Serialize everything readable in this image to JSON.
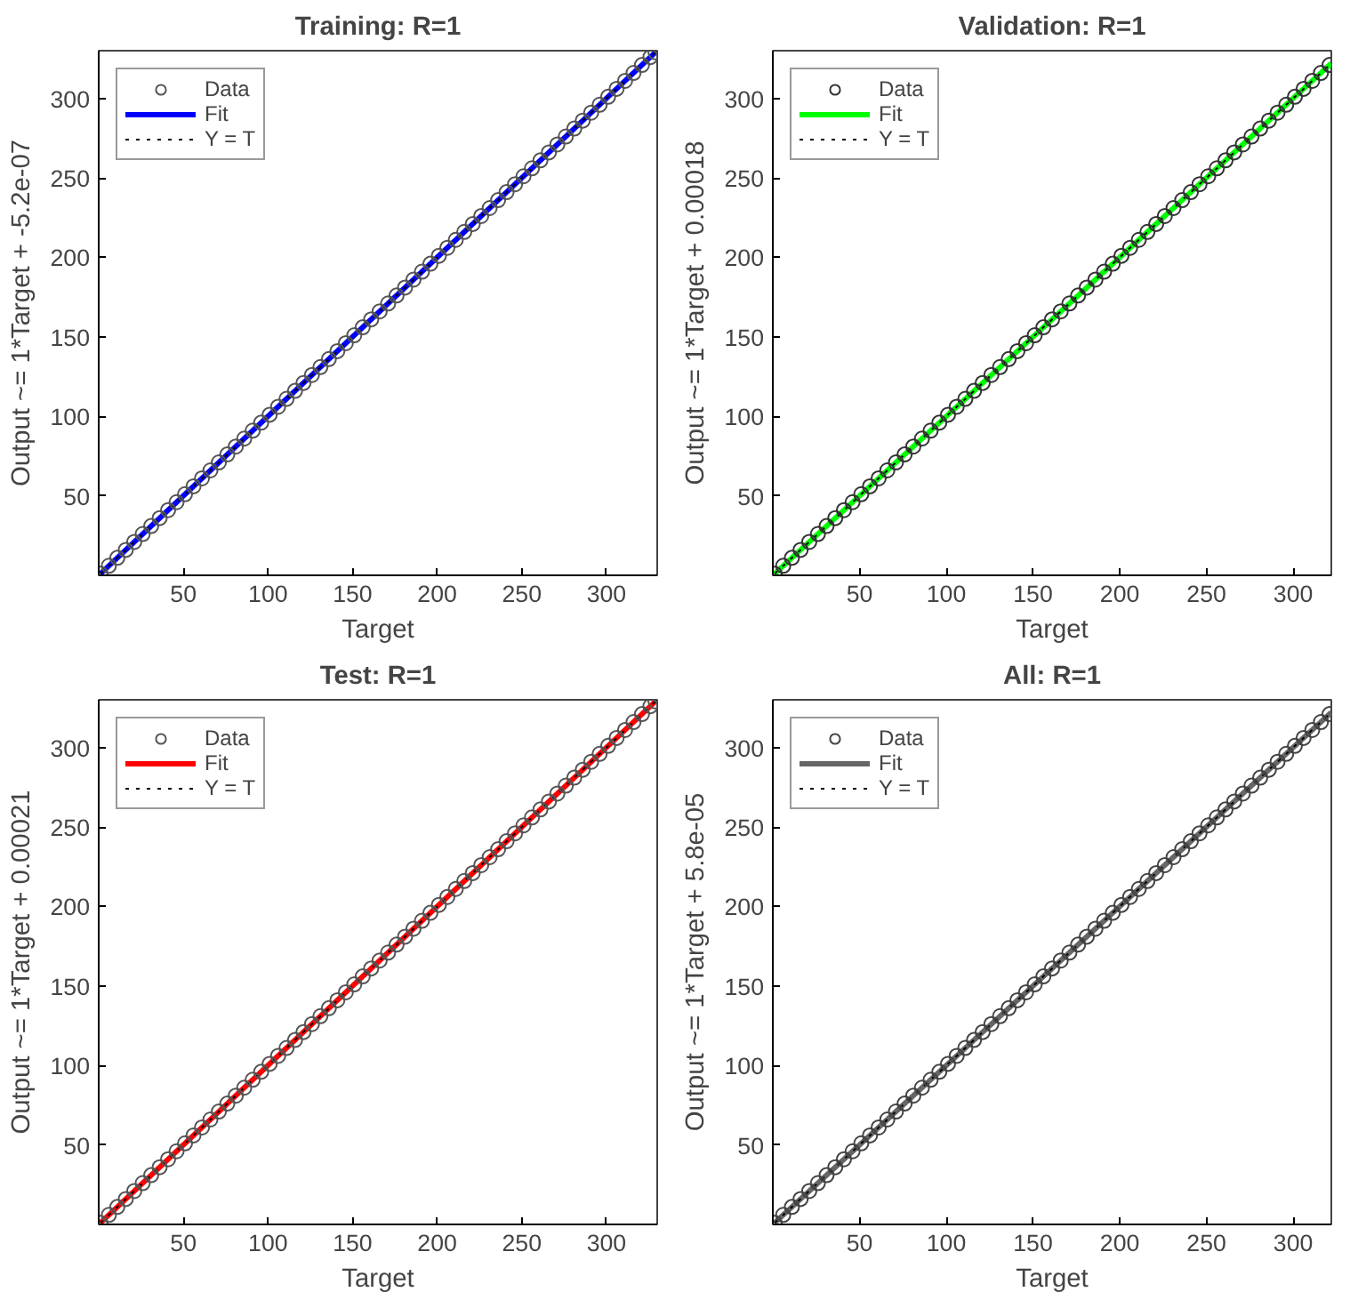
{
  "chart_data": [
    {
      "type": "scatter",
      "title": "Training: R=1",
      "xlabel": "Target",
      "ylabel": "Output ~= 1*Target + -5.2e-07",
      "xlim": [
        0,
        330
      ],
      "ylim": [
        0,
        330
      ],
      "xticks": [
        50,
        100,
        150,
        200,
        250,
        300
      ],
      "yticks": [
        50,
        100,
        150,
        200,
        250,
        300
      ],
      "grid": false,
      "legend": "top left",
      "series": [
        {
          "name": "Data",
          "marker": "circle",
          "color": "#555555",
          "x": [
            1,
            6,
            11,
            16,
            21,
            26,
            31,
            36,
            41,
            46,
            51,
            56,
            61,
            66,
            71,
            76,
            81,
            86,
            91,
            96,
            101,
            106,
            111,
            116,
            121,
            126,
            131,
            136,
            141,
            146,
            151,
            156,
            161,
            166,
            171,
            176,
            181,
            186,
            191,
            196,
            201,
            206,
            211,
            216,
            221,
            226,
            231,
            236,
            241,
            246,
            251,
            256,
            261,
            266,
            271,
            276,
            281,
            286,
            291,
            296,
            301,
            306,
            311,
            316,
            321,
            326,
            329
          ],
          "values": [
            1,
            6,
            11,
            16,
            21,
            26,
            31,
            36,
            41,
            46,
            51,
            56,
            61,
            66,
            71,
            76,
            81,
            86,
            91,
            96,
            101,
            106,
            111,
            116,
            121,
            126,
            131,
            136,
            141,
            146,
            151,
            156,
            161,
            166,
            171,
            176,
            181,
            186,
            191,
            196,
            201,
            206,
            211,
            216,
            221,
            226,
            231,
            236,
            241,
            246,
            251,
            256,
            261,
            266,
            271,
            276,
            281,
            286,
            291,
            296,
            301,
            306,
            311,
            316,
            321,
            326,
            329
          ]
        },
        {
          "name": "Fit",
          "type": "line",
          "line_style": "solid",
          "color": "#0000ff",
          "x": [
            1,
            329
          ],
          "values": [
            1,
            329
          ]
        },
        {
          "name": "Y = T",
          "type": "line",
          "line_style": "dotted",
          "color": "#000000",
          "x": [
            1,
            329
          ],
          "values": [
            1,
            329
          ]
        }
      ]
    },
    {
      "type": "scatter",
      "title": "Validation: R=1",
      "xlabel": "Target",
      "ylabel": "Output ~= 1*Target + 0.00018",
      "xlim": [
        0,
        322
      ],
      "ylim": [
        0,
        330
      ],
      "xticks": [
        50,
        100,
        150,
        200,
        250,
        300
      ],
      "yticks": [
        50,
        100,
        150,
        200,
        250,
        300
      ],
      "grid": false,
      "legend": "top left",
      "series": [
        {
          "name": "Data",
          "marker": "circle",
          "color": "#333333",
          "x": [
            1,
            6,
            11,
            16,
            21,
            26,
            31,
            36,
            41,
            46,
            51,
            56,
            61,
            66,
            71,
            76,
            81,
            86,
            91,
            96,
            101,
            106,
            111,
            116,
            121,
            126,
            131,
            136,
            141,
            146,
            151,
            156,
            161,
            166,
            171,
            176,
            181,
            186,
            191,
            196,
            201,
            206,
            211,
            216,
            221,
            226,
            231,
            236,
            241,
            246,
            251,
            256,
            261,
            266,
            271,
            276,
            281,
            286,
            291,
            296,
            301,
            306,
            311,
            316,
            321
          ],
          "values": [
            1,
            6,
            11,
            16,
            21,
            26,
            31,
            36,
            41,
            46,
            51,
            56,
            61,
            66,
            71,
            76,
            81,
            86,
            91,
            96,
            101,
            106,
            111,
            116,
            121,
            126,
            131,
            136,
            141,
            146,
            151,
            156,
            161,
            166,
            171,
            176,
            181,
            186,
            191,
            196,
            201,
            206,
            211,
            216,
            221,
            226,
            231,
            236,
            241,
            246,
            251,
            256,
            261,
            266,
            271,
            276,
            281,
            286,
            291,
            296,
            301,
            306,
            311,
            316,
            321
          ]
        },
        {
          "name": "Fit",
          "type": "line",
          "line_style": "solid",
          "color": "#00ff00",
          "x": [
            1,
            322
          ],
          "values": [
            1,
            322
          ]
        },
        {
          "name": "Y = T",
          "type": "line",
          "line_style": "dotted",
          "color": "#000000",
          "x": [
            1,
            322
          ],
          "values": [
            1,
            322
          ]
        }
      ]
    },
    {
      "type": "scatter",
      "title": "Test: R=1",
      "xlabel": "Target",
      "ylabel": "Output ~= 1*Target + 0.00021",
      "xlim": [
        0,
        330
      ],
      "ylim": [
        0,
        330
      ],
      "xticks": [
        50,
        100,
        150,
        200,
        250,
        300
      ],
      "yticks": [
        50,
        100,
        150,
        200,
        250,
        300
      ],
      "grid": false,
      "legend": "top left",
      "series": [
        {
          "name": "Data",
          "marker": "circle",
          "color": "#555555",
          "x": [
            1,
            6,
            11,
            16,
            21,
            26,
            31,
            36,
            41,
            46,
            51,
            56,
            61,
            66,
            71,
            76,
            81,
            86,
            91,
            96,
            101,
            106,
            111,
            116,
            121,
            126,
            131,
            136,
            141,
            146,
            151,
            156,
            161,
            166,
            171,
            176,
            181,
            186,
            191,
            196,
            201,
            206,
            211,
            216,
            221,
            226,
            231,
            236,
            241,
            246,
            251,
            256,
            261,
            266,
            271,
            276,
            281,
            286,
            291,
            296,
            301,
            306,
            311,
            316,
            321,
            326,
            329
          ],
          "values": [
            1,
            6,
            11,
            16,
            21,
            26,
            31,
            36,
            41,
            46,
            51,
            56,
            61,
            66,
            71,
            76,
            81,
            86,
            91,
            96,
            101,
            106,
            111,
            116,
            121,
            126,
            131,
            136,
            141,
            146,
            151,
            156,
            161,
            166,
            171,
            176,
            181,
            186,
            191,
            196,
            201,
            206,
            211,
            216,
            221,
            226,
            231,
            236,
            241,
            246,
            251,
            256,
            261,
            266,
            271,
            276,
            281,
            286,
            291,
            296,
            301,
            306,
            311,
            316,
            321,
            326,
            329
          ]
        },
        {
          "name": "Fit",
          "type": "line",
          "line_style": "solid",
          "color": "#ff0000",
          "x": [
            1,
            329
          ],
          "values": [
            1,
            329
          ]
        },
        {
          "name": "Y = T",
          "type": "line",
          "line_style": "dotted",
          "color": "#000000",
          "x": [
            1,
            329
          ],
          "values": [
            1,
            329
          ]
        }
      ]
    },
    {
      "type": "scatter",
      "title": "All: R=1",
      "xlabel": "Target",
      "ylabel": "Output ~= 1*Target + 5.8e-05",
      "xlim": [
        0,
        322
      ],
      "ylim": [
        0,
        330
      ],
      "xticks": [
        50,
        100,
        150,
        200,
        250,
        300
      ],
      "yticks": [
        50,
        100,
        150,
        200,
        250,
        300
      ],
      "grid": false,
      "legend": "top left",
      "series": [
        {
          "name": "Data",
          "marker": "circle",
          "color": "#444444",
          "x": [
            1,
            6,
            11,
            16,
            21,
            26,
            31,
            36,
            41,
            46,
            51,
            56,
            61,
            66,
            71,
            76,
            81,
            86,
            91,
            96,
            101,
            106,
            111,
            116,
            121,
            126,
            131,
            136,
            141,
            146,
            151,
            156,
            161,
            166,
            171,
            176,
            181,
            186,
            191,
            196,
            201,
            206,
            211,
            216,
            221,
            226,
            231,
            236,
            241,
            246,
            251,
            256,
            261,
            266,
            271,
            276,
            281,
            286,
            291,
            296,
            301,
            306,
            311,
            316,
            321
          ],
          "values": [
            1,
            6,
            11,
            16,
            21,
            26,
            31,
            36,
            41,
            46,
            51,
            56,
            61,
            66,
            71,
            76,
            81,
            86,
            91,
            96,
            101,
            106,
            111,
            116,
            121,
            126,
            131,
            136,
            141,
            146,
            151,
            156,
            161,
            166,
            171,
            176,
            181,
            186,
            191,
            196,
            201,
            206,
            211,
            216,
            221,
            226,
            231,
            236,
            241,
            246,
            251,
            256,
            261,
            266,
            271,
            276,
            281,
            286,
            291,
            296,
            301,
            306,
            311,
            316,
            321
          ]
        },
        {
          "name": "Fit",
          "type": "line",
          "line_style": "solid",
          "color": "#666666",
          "x": [
            1,
            322
          ],
          "values": [
            1,
            322
          ]
        },
        {
          "name": "Y = T",
          "type": "line",
          "line_style": "dotted",
          "color": "#000000",
          "x": [
            1,
            322
          ],
          "values": [
            1,
            322
          ]
        }
      ]
    }
  ]
}
